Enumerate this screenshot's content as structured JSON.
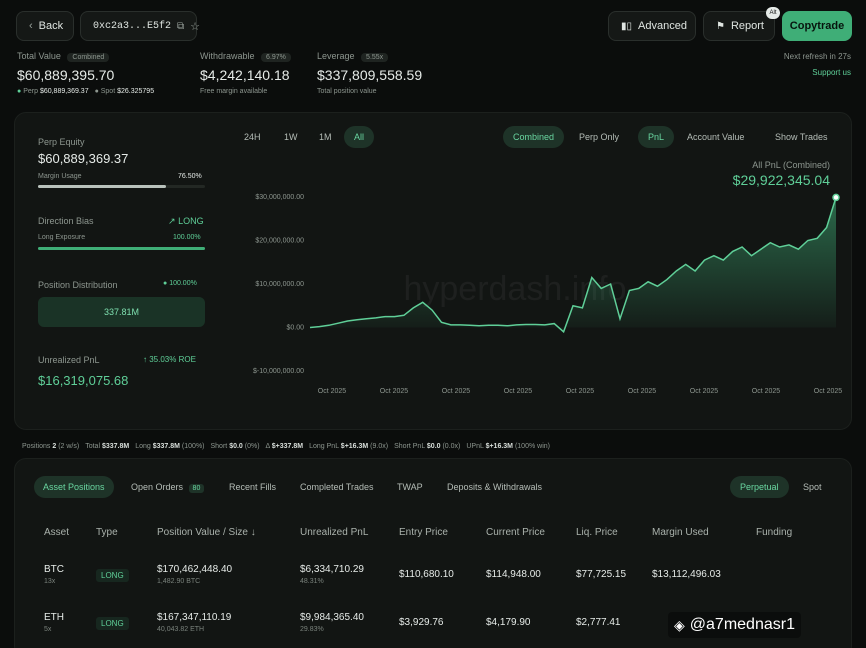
{
  "nav": {
    "back_label": "Back",
    "address": "0xc2a3...E5f2",
    "advanced_label": "Advanced",
    "report_label": "Report",
    "report_badge": "Alt",
    "copytrade_label": "Copytrade"
  },
  "summary": {
    "total_value_label": "Total Value",
    "total_value_chip": "Combined",
    "total_value": "$60,889,395.70",
    "perp_label": "Perp",
    "perp_value": "$60,889,369.37",
    "spot_label": "Spot",
    "spot_value": "$26.325795",
    "withdrawable_label": "Withdrawable",
    "withdrawable_chip": "6.97%",
    "withdrawable_value": "$4,242,140.18",
    "withdrawable_sub": "Free margin available",
    "leverage_label": "Leverage",
    "leverage_chip": "5.55x",
    "leverage_value": "$337,809,558.59",
    "leverage_sub": "Total position value",
    "refresh_text": "Next refresh in 27s",
    "support_link": "Support us"
  },
  "left": {
    "perp_equity_label": "Perp Equity",
    "perp_equity_value": "$60,889,369.37",
    "margin_usage_label": "Margin Usage",
    "margin_usage_value": "76.50%",
    "margin_usage_fraction": 0.765,
    "direction_bias_label": "Direction Bias",
    "direction_bias_value": "LONG",
    "long_exposure_label": "Long Exposure",
    "long_exposure_value": "100.00%",
    "long_exposure_fraction": 1.0,
    "position_distribution_label": "Position Distribution",
    "position_distribution_pct": "100.00%",
    "position_distribution_value": "337.81M",
    "unrealized_pnl_label": "Unrealized PnL",
    "unrealized_pnl_roe": "35.03% ROE",
    "unrealized_pnl_value": "$16,319,075.68"
  },
  "chart_controls": {
    "ranges": [
      "24H",
      "1W",
      "1M",
      "All"
    ],
    "active_range": "All",
    "modes": [
      "Combined",
      "Perp Only"
    ],
    "active_mode": "Combined",
    "metrics": [
      "PnL",
      "Account Value"
    ],
    "active_metric": "PnL",
    "show_trades": "Show Trades",
    "headline_label": "All PnL (Combined)",
    "headline_value": "$29,922,345.04",
    "watermark": "hyperdash.info"
  },
  "chart_data": {
    "type": "area",
    "title": "",
    "xlabel": "",
    "ylabel": "",
    "ylim": [
      -10000000,
      30000000
    ],
    "yticks": [
      30000000,
      20000000,
      10000000,
      0,
      -10000000
    ],
    "ytick_labels": [
      "$30,000,000.00",
      "$20,000,000.00",
      "$10,000,000.00",
      "$0.00",
      "$-10,000,000.00"
    ],
    "xtick_labels": [
      "Oct 2025",
      "Oct 2025",
      "Oct 2025",
      "Oct 2025",
      "Oct 2025",
      "Oct 2025",
      "Oct 2025",
      "Oct 2025",
      "Oct 2025"
    ],
    "grid": false,
    "series": [
      {
        "color": "#5fcf98",
        "x": [
          0,
          1,
          2,
          3,
          4,
          5,
          6,
          7,
          8,
          9,
          10,
          11,
          12,
          13,
          14,
          15,
          16,
          17,
          18,
          19,
          20,
          21,
          22,
          23,
          24,
          25,
          26,
          27,
          28,
          29,
          30,
          31,
          32,
          33,
          34,
          35,
          36,
          37,
          38,
          39,
          40,
          41,
          42,
          43,
          44,
          45,
          46,
          47,
          48,
          49,
          50,
          51,
          52,
          53,
          54,
          55,
          56
        ],
        "values": [
          0,
          200000,
          500000,
          1000000,
          1500000,
          1800000,
          2000000,
          2200000,
          2500000,
          2500000,
          2800000,
          4500000,
          5800000,
          4000000,
          1200000,
          600000,
          600000,
          500000,
          400000,
          500000,
          500000,
          400000,
          600000,
          700000,
          700000,
          600000,
          900000,
          -1000000,
          5000000,
          4500000,
          11500000,
          9000000,
          10000000,
          2000000,
          8500000,
          9000000,
          10500000,
          9500000,
          11000000,
          13000000,
          14500000,
          13000000,
          15500000,
          16500000,
          15500000,
          17500000,
          18500000,
          16500000,
          18000000,
          19500000,
          18500000,
          19000000,
          18000000,
          20000000,
          20500000,
          23000000,
          29900000
        ]
      }
    ]
  },
  "stats_strip": [
    {
      "label": "Positions",
      "value": "2",
      "extra": "(2 w/s)"
    },
    {
      "label": "Total",
      "value": "$337.8M",
      "extra": ""
    },
    {
      "label": "Long",
      "value": "$337.8M",
      "extra": "(100%)"
    },
    {
      "label": "Short",
      "value": "$0.0",
      "extra": "(0%)"
    },
    {
      "label": "Δ",
      "value": "$+337.8M",
      "extra": ""
    },
    {
      "label": "Long PnL",
      "value": "$+16.3M",
      "extra": "(9.0x)"
    },
    {
      "label": "Short PnL",
      "value": "$0.0",
      "extra": "(0.0x)"
    },
    {
      "label": "UPnL",
      "value": "$+16.3M",
      "extra": "(100% win)"
    }
  ],
  "table_tabs": [
    "Asset Positions",
    "Open Orders",
    "Recent Fills",
    "Completed Trades",
    "TWAP",
    "Deposits & Withdrawals"
  ],
  "open_orders_badge": "80",
  "active_table_tab": "Asset Positions",
  "market_tabs": [
    "Perpetual",
    "Spot"
  ],
  "active_market_tab": "Perpetual",
  "table": {
    "headers": [
      "Asset",
      "Type",
      "Position Value / Size",
      "Unrealized PnL",
      "Entry Price",
      "Current Price",
      "Liq. Price",
      "Margin Used",
      "Funding"
    ],
    "rows": [
      {
        "asset": "BTC",
        "leverage": "13x",
        "type": "LONG",
        "value": "$170,462,448.40",
        "size": "1,482.90 BTC",
        "pnl": "$6,334,710.29",
        "pnl_pct": "48.31%",
        "entry": "$110,680.10",
        "current": "$114,948.00",
        "liq": "$77,725.15",
        "margin": "$13,112,496.03",
        "funding": ""
      },
      {
        "asset": "ETH",
        "leverage": "5x",
        "type": "LONG",
        "value": "$167,347,110.19",
        "size": "40,043.82 ETH",
        "pnl": "$9,984,365.40",
        "pnl_pct": "29.83%",
        "entry": "$3,929.76",
        "current": "$4,179.90",
        "liq": "$2,777.41",
        "margin": "",
        "funding": ""
      }
    ]
  },
  "overlay_watermark": "@a7mednasr1"
}
